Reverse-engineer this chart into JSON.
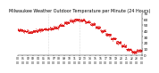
{
  "title": "Milwaukee Weather Outdoor Temperature per Minute (24 Hours)",
  "title_fontsize": 3.5,
  "line_color": "#dd0000",
  "marker": ".",
  "markersize": 0.8,
  "background_color": "#ffffff",
  "ylim": [
    0,
    70
  ],
  "yticks": [
    0,
    10,
    20,
    30,
    40,
    50,
    60,
    70
  ],
  "ytick_fontsize": 3.0,
  "xtick_fontsize": 2.2,
  "vline_positions": [
    360,
    720
  ],
  "vline_color": "#bbbbbb",
  "vline_style": ":"
}
